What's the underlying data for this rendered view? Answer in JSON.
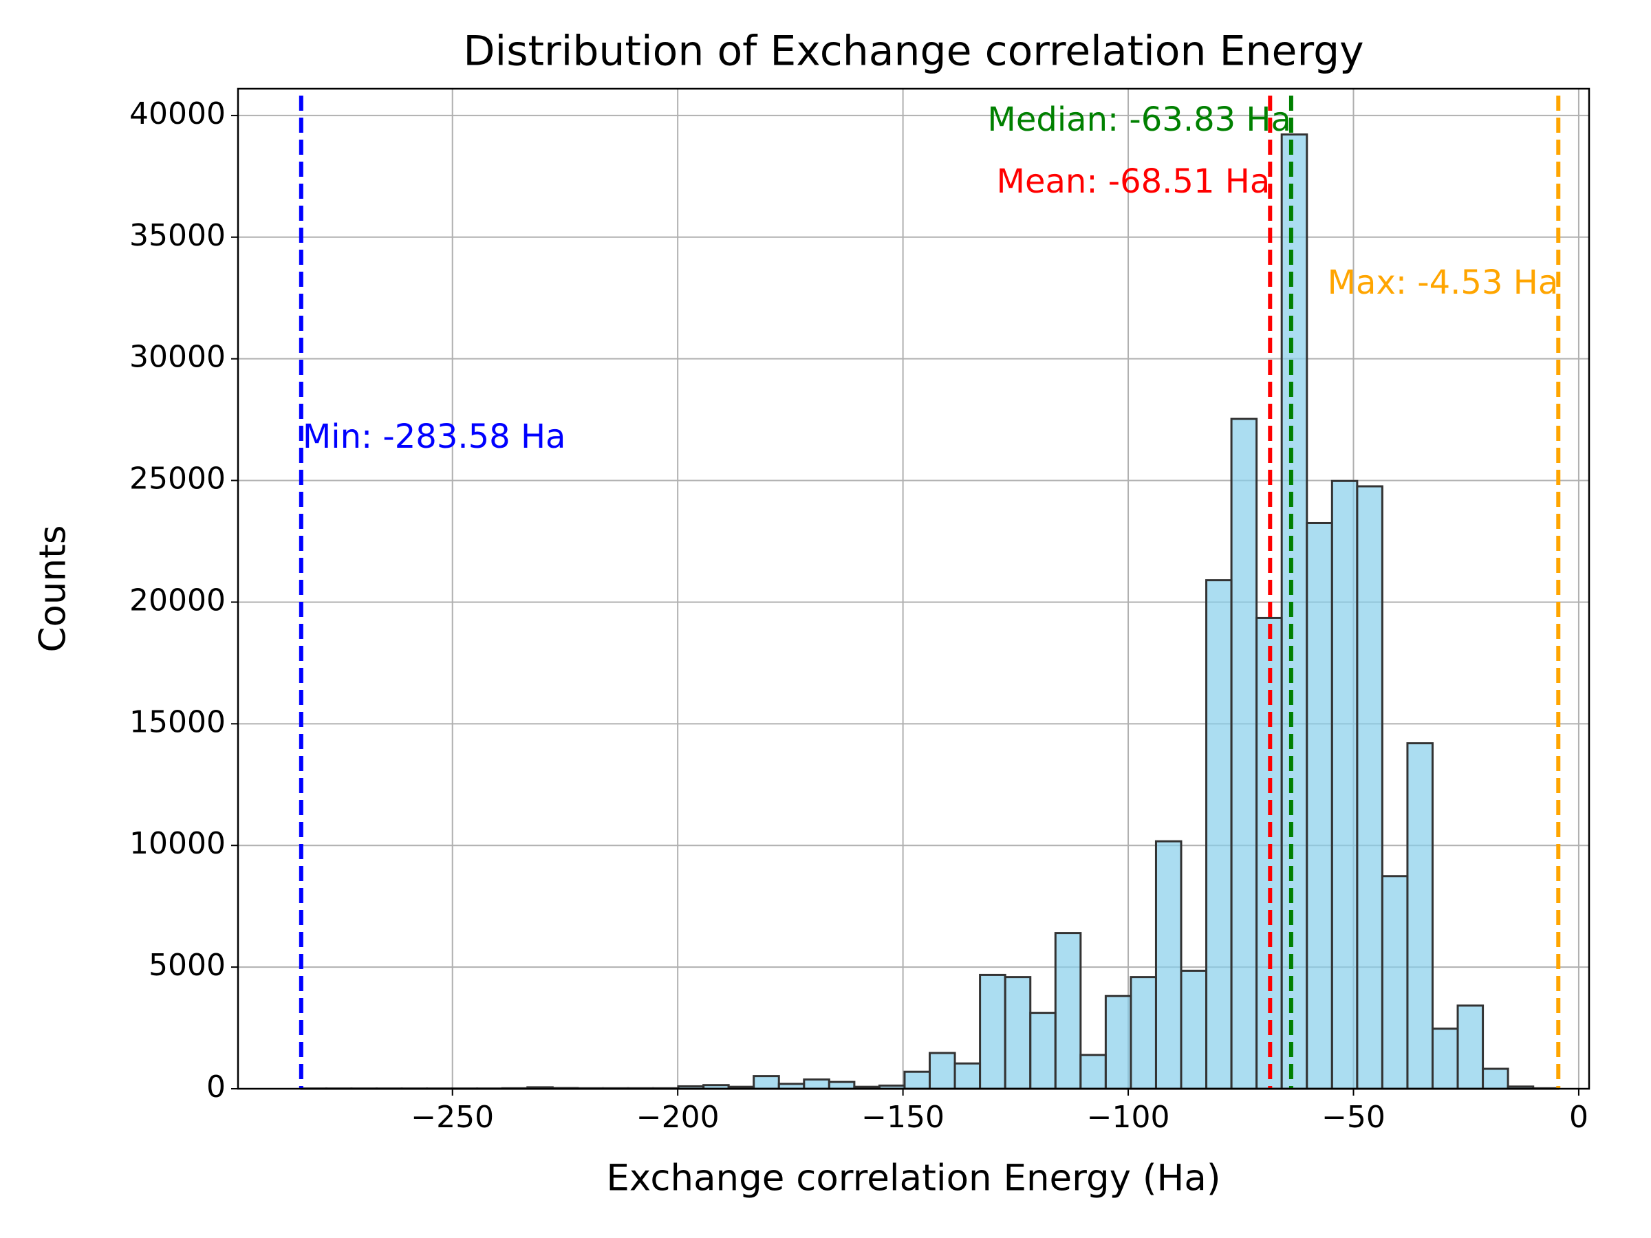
{
  "chart_data": {
    "type": "histogram",
    "title": "Distribution of Exchange correlation Energy",
    "x_label": "Exchange correlation Energy (Ha)",
    "y_label": "Counts",
    "bins": [
      -283.58,
      -278.0,
      -272.42,
      -266.84,
      -261.26,
      -255.67,
      -250.09,
      -244.51,
      -238.93,
      -233.35,
      -227.77,
      -222.19,
      -216.61,
      -211.03,
      -205.45,
      -199.87,
      -194.28,
      -188.7,
      -183.12,
      -177.54,
      -171.96,
      -166.38,
      -160.8,
      -155.22,
      -149.64,
      -144.06,
      -138.48,
      -132.9,
      -127.31,
      -121.73,
      -116.15,
      -110.57,
      -104.99,
      -99.41,
      -93.83,
      -88.25,
      -82.67,
      -77.09,
      -71.51,
      -65.93,
      -60.34,
      -54.76,
      -49.18,
      -43.6,
      -38.02,
      -32.44,
      -26.86,
      -21.28,
      -15.7,
      -10.11,
      -4.53
    ],
    "values": [
      10,
      10,
      10,
      10,
      10,
      10,
      10,
      10,
      20,
      60,
      30,
      20,
      20,
      20,
      20,
      100,
      150,
      80,
      520,
      200,
      380,
      280,
      80,
      130,
      700,
      1470,
      1040,
      4680,
      4590,
      3120,
      6400,
      1390,
      3810,
      4590,
      10170,
      4850,
      20900,
      27530,
      19350,
      39220,
      23250,
      24980,
      24760,
      8740,
      14200,
      2470,
      3420,
      820,
      90,
      20
    ],
    "color": "#87ceeb",
    "edge_color": "#333333",
    "lines": [
      {
        "value": -283.58,
        "label": "Min: -283.58 Ha",
        "color": "#0000ff"
      },
      {
        "value": -68.51,
        "label": "Mean: -68.51 Ha",
        "color": "#ff0000"
      },
      {
        "value": -63.83,
        "label": "Median: -63.83 Ha",
        "color": "#008000"
      },
      {
        "value": -4.53,
        "label": "Max: -4.53 Ha",
        "color": "#ffa500"
      }
    ],
    "xlim": [
      -297.6,
      2.3
    ],
    "ylim": [
      0,
      41100
    ],
    "xticks": [
      {
        "value": -250,
        "label": "−250"
      },
      {
        "value": -200,
        "label": "−200"
      },
      {
        "value": -150,
        "label": "−150"
      },
      {
        "value": -100,
        "label": "−100"
      },
      {
        "value": -50,
        "label": "−50"
      },
      0
    ],
    "yticks": [
      0,
      5000,
      10000,
      15000,
      20000,
      25000,
      30000,
      35000,
      40000
    ],
    "grid": true
  }
}
